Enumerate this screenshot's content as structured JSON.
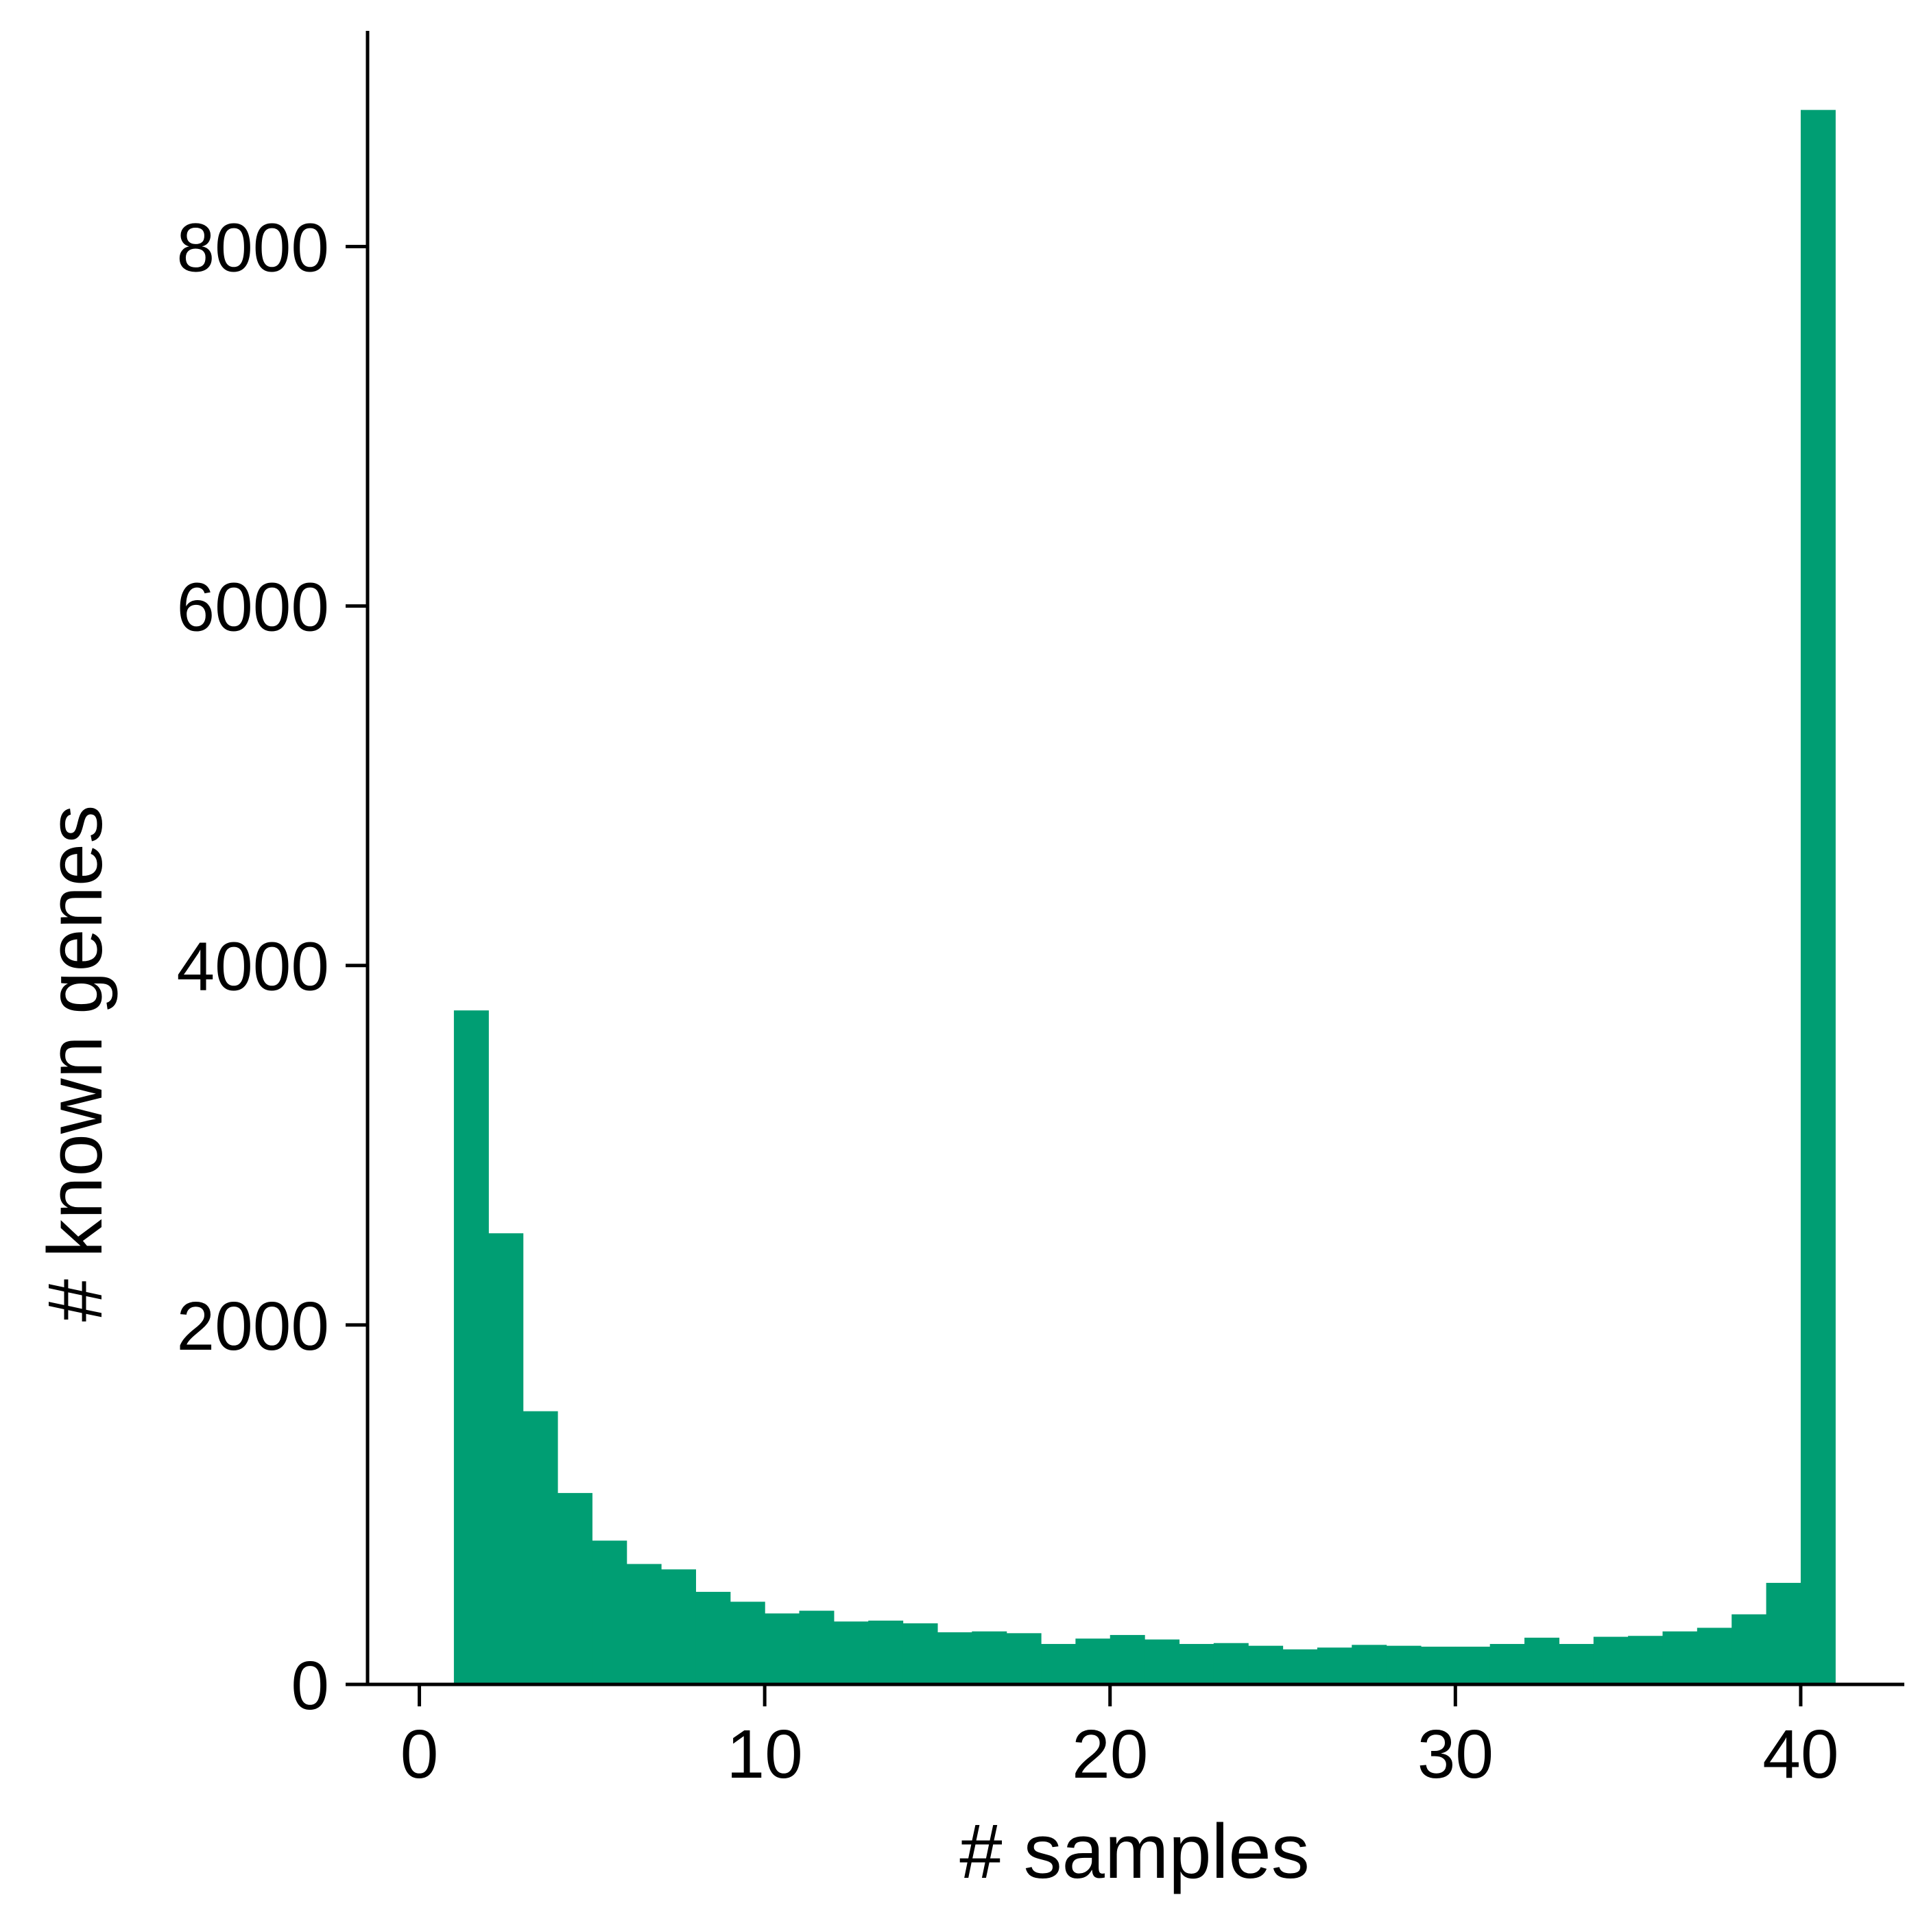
{
  "chart_data": {
    "type": "bar",
    "subtype": "histogram",
    "xlabel": "# samples",
    "ylabel": "# known genes",
    "xlim": [
      -1.5,
      43
    ],
    "ylim": [
      0,
      9200
    ],
    "x_ticks": [
      0,
      10,
      20,
      30,
      40
    ],
    "y_ticks": [
      0,
      2000,
      4000,
      6000,
      8000
    ],
    "bin_width": 1,
    "bins": [
      {
        "x0": 1,
        "x1": 2,
        "value": 3750
      },
      {
        "x0": 2,
        "x1": 3,
        "value": 2510
      },
      {
        "x0": 3,
        "x1": 4,
        "value": 1520
      },
      {
        "x0": 4,
        "x1": 5,
        "value": 1065
      },
      {
        "x0": 5,
        "x1": 6,
        "value": 800
      },
      {
        "x0": 6,
        "x1": 7,
        "value": 670
      },
      {
        "x0": 7,
        "x1": 8,
        "value": 640
      },
      {
        "x0": 8,
        "x1": 9,
        "value": 515
      },
      {
        "x0": 9,
        "x1": 10,
        "value": 460
      },
      {
        "x0": 10,
        "x1": 11,
        "value": 395
      },
      {
        "x0": 11,
        "x1": 12,
        "value": 410
      },
      {
        "x0": 12,
        "x1": 13,
        "value": 350
      },
      {
        "x0": 13,
        "x1": 14,
        "value": 355
      },
      {
        "x0": 14,
        "x1": 15,
        "value": 340
      },
      {
        "x0": 15,
        "x1": 16,
        "value": 290
      },
      {
        "x0": 16,
        "x1": 17,
        "value": 295
      },
      {
        "x0": 17,
        "x1": 18,
        "value": 285
      },
      {
        "x0": 18,
        "x1": 19,
        "value": 225
      },
      {
        "x0": 19,
        "x1": 20,
        "value": 255
      },
      {
        "x0": 20,
        "x1": 21,
        "value": 275
      },
      {
        "x0": 21,
        "x1": 22,
        "value": 250
      },
      {
        "x0": 22,
        "x1": 23,
        "value": 225
      },
      {
        "x0": 23,
        "x1": 24,
        "value": 230
      },
      {
        "x0": 24,
        "x1": 25,
        "value": 215
      },
      {
        "x0": 25,
        "x1": 26,
        "value": 195
      },
      {
        "x0": 26,
        "x1": 27,
        "value": 205
      },
      {
        "x0": 27,
        "x1": 28,
        "value": 220
      },
      {
        "x0": 28,
        "x1": 29,
        "value": 215
      },
      {
        "x0": 29,
        "x1": 30,
        "value": 210
      },
      {
        "x0": 30,
        "x1": 31,
        "value": 210
      },
      {
        "x0": 31,
        "x1": 32,
        "value": 225
      },
      {
        "x0": 32,
        "x1": 33,
        "value": 260
      },
      {
        "x0": 33,
        "x1": 34,
        "value": 225
      },
      {
        "x0": 34,
        "x1": 35,
        "value": 265
      },
      {
        "x0": 35,
        "x1": 36,
        "value": 270
      },
      {
        "x0": 36,
        "x1": 37,
        "value": 295
      },
      {
        "x0": 37,
        "x1": 38,
        "value": 315
      },
      {
        "x0": 38,
        "x1": 39,
        "value": 390
      },
      {
        "x0": 39,
        "x1": 40,
        "value": 565
      },
      {
        "x0": 40,
        "x1": 41,
        "value": 8760
      }
    ],
    "bar_color": "#009e73",
    "grid": false,
    "legend": "none"
  }
}
